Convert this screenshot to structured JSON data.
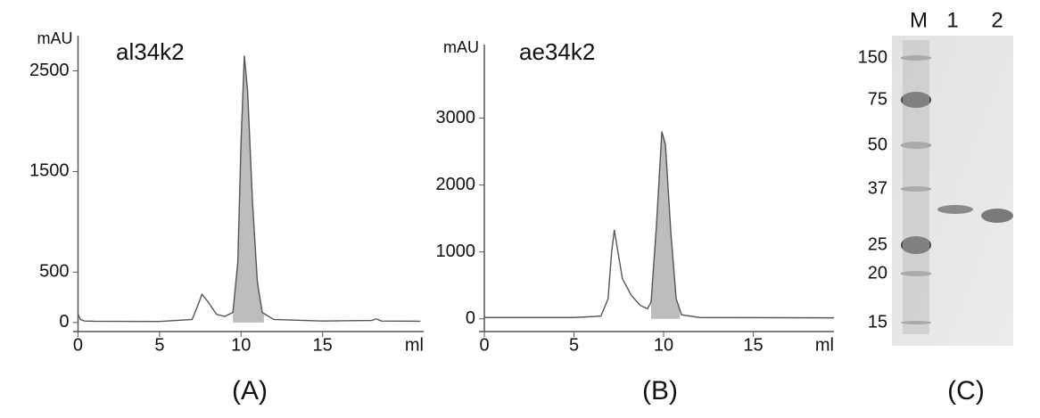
{
  "chart_data": [
    {
      "type": "line",
      "title": "al34k2",
      "y_label": "mAU",
      "x_label": "ml",
      "caption": "(A)",
      "x": [
        0,
        0.15,
        0.4,
        1,
        5,
        7,
        7.3,
        7.6,
        8,
        8.5,
        9,
        9.5,
        9.8,
        10,
        10.2,
        10.4,
        10.7,
        11,
        11.3,
        12,
        15,
        18,
        18.3,
        18.6,
        21
      ],
      "values": [
        80,
        30,
        15,
        12,
        10,
        30,
        150,
        280,
        200,
        80,
        60,
        100,
        600,
        1800,
        2650,
        2300,
        1200,
        400,
        100,
        30,
        15,
        20,
        35,
        15,
        12
      ],
      "color": "#555555",
      "shade_range": [
        9.5,
        11.4
      ],
      "shade_color": "#bdbdbd",
      "xlim": [
        -0.3,
        21.2
      ],
      "ylim": [
        -90,
        2850
      ],
      "xticks": [
        0,
        5,
        10,
        15
      ],
      "yticks": [
        0,
        500,
        1500,
        2500
      ]
    },
    {
      "type": "line",
      "title": "ae34k2",
      "y_label": "mAU",
      "x_label": "ml",
      "caption": "(B)",
      "x": [
        0,
        5,
        6.5,
        6.9,
        7.1,
        7.25,
        7.45,
        7.7,
        8.2,
        8.7,
        9.1,
        9.3,
        9.6,
        9.9,
        10.1,
        10.4,
        10.7,
        11,
        12,
        19.5
      ],
      "values": [
        20,
        20,
        40,
        300,
        1000,
        1330,
        1000,
        600,
        350,
        200,
        150,
        250,
        1400,
        2800,
        2600,
        1300,
        300,
        60,
        20,
        15
      ],
      "color": "#555555",
      "shade_range": [
        9.3,
        10.9
      ],
      "shade_color": "#bdbdbd",
      "xlim": [
        -0.3,
        19.5
      ],
      "ylim": [
        -190,
        4100
      ],
      "xticks": [
        0,
        5,
        10,
        15
      ],
      "yticks": [
        0,
        1000,
        2000,
        3000
      ]
    },
    {
      "type": "gel",
      "caption": "(C)",
      "lanes": [
        "M",
        "1",
        "2"
      ],
      "markers": [
        "150",
        "75",
        "50",
        "37",
        "25",
        "20",
        "15"
      ]
    }
  ]
}
